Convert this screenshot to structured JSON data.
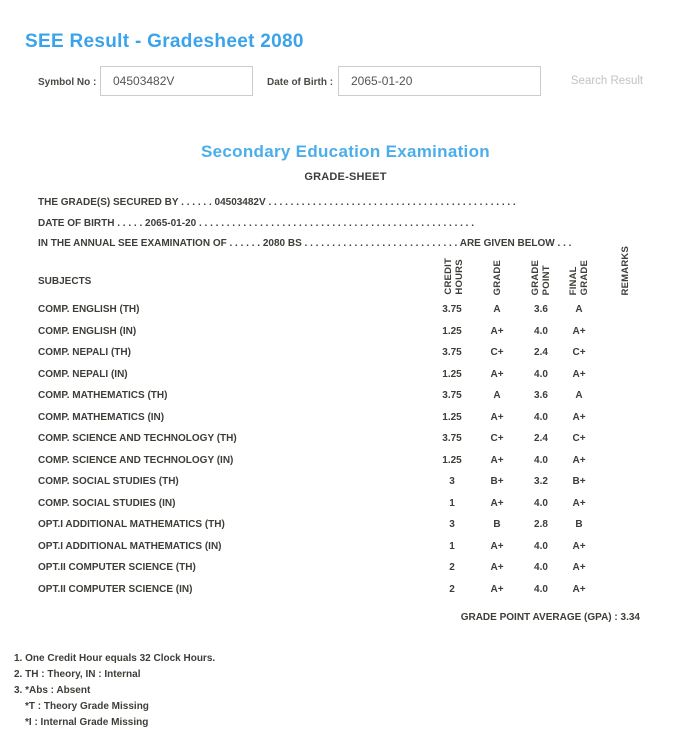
{
  "page": {
    "title": "SEE Result - Gradesheet 2080"
  },
  "search_form": {
    "symbol_label": "Symbol No :",
    "symbol_value": "04503482V",
    "dob_label": "Date of Birth :",
    "dob_value": "2065-01-20",
    "search_button_label": "Search Result"
  },
  "gradesheet": {
    "exam_title": "Secondary Education Examination",
    "sheet_title": "GRADE-SHEET",
    "intro_lines": [
      "THE GRADE(S) SECURED BY . . . . . . 04503482V . . . . . . . . . . . . . . . . . . . . . . . . . . . . . . . . . . . . . . . . . . . . .",
      "DATE OF BIRTH . . . . . 2065-01-20 . . . . . . . . . . . . . . . . . . . . . . . . . . . . . . . . . . . . . . . . . . . . . . . . . .",
      "IN THE ANNUAL SEE EXAMINATION OF . . . . . . 2080 BS . . . . . . . . . . . . . . . . . . . . . . . . . . . . ARE GIVEN BELOW . . ."
    ],
    "table": {
      "subjects_header": "SUBJECTS",
      "columns": {
        "credit_hours": "CREDIT\nHOURS",
        "grade": "GRADE",
        "grade_point": "GRADE\nPOINT",
        "final_grade": "FINAL\nGRADE",
        "remarks": "REMARKS"
      },
      "rows": [
        {
          "subject": "COMP. ENGLISH (TH)",
          "credit_hours": "3.75",
          "grade": "A",
          "grade_point": "3.6",
          "final_grade": "A",
          "remarks": ""
        },
        {
          "subject": "COMP. ENGLISH (IN)",
          "credit_hours": "1.25",
          "grade": "A+",
          "grade_point": "4.0",
          "final_grade": "A+",
          "remarks": ""
        },
        {
          "subject": "COMP. NEPALI (TH)",
          "credit_hours": "3.75",
          "grade": "C+",
          "grade_point": "2.4",
          "final_grade": "C+",
          "remarks": ""
        },
        {
          "subject": "COMP. NEPALI (IN)",
          "credit_hours": "1.25",
          "grade": "A+",
          "grade_point": "4.0",
          "final_grade": "A+",
          "remarks": ""
        },
        {
          "subject": "COMP. MATHEMATICS (TH)",
          "credit_hours": "3.75",
          "grade": "A",
          "grade_point": "3.6",
          "final_grade": "A",
          "remarks": ""
        },
        {
          "subject": "COMP. MATHEMATICS (IN)",
          "credit_hours": "1.25",
          "grade": "A+",
          "grade_point": "4.0",
          "final_grade": "A+",
          "remarks": ""
        },
        {
          "subject": "COMP. SCIENCE AND TECHNOLOGY (TH)",
          "credit_hours": "3.75",
          "grade": "C+",
          "grade_point": "2.4",
          "final_grade": "C+",
          "remarks": ""
        },
        {
          "subject": "COMP. SCIENCE AND TECHNOLOGY (IN)",
          "credit_hours": "1.25",
          "grade": "A+",
          "grade_point": "4.0",
          "final_grade": "A+",
          "remarks": ""
        },
        {
          "subject": "COMP. SOCIAL STUDIES (TH)",
          "credit_hours": "3",
          "grade": "B+",
          "grade_point": "3.2",
          "final_grade": "B+",
          "remarks": ""
        },
        {
          "subject": "COMP. SOCIAL STUDIES (IN)",
          "credit_hours": "1",
          "grade": "A+",
          "grade_point": "4.0",
          "final_grade": "A+",
          "remarks": ""
        },
        {
          "subject": "OPT.I ADDITIONAL MATHEMATICS (TH)",
          "credit_hours": "3",
          "grade": "B",
          "grade_point": "2.8",
          "final_grade": "B",
          "remarks": ""
        },
        {
          "subject": "OPT.I ADDITIONAL MATHEMATICS (IN)",
          "credit_hours": "1",
          "grade": "A+",
          "grade_point": "4.0",
          "final_grade": "A+",
          "remarks": ""
        },
        {
          "subject": "OPT.II COMPUTER SCIENCE (TH)",
          "credit_hours": "2",
          "grade": "A+",
          "grade_point": "4.0",
          "final_grade": "A+",
          "remarks": ""
        },
        {
          "subject": "OPT.II COMPUTER SCIENCE (IN)",
          "credit_hours": "2",
          "grade": "A+",
          "grade_point": "4.0",
          "final_grade": "A+",
          "remarks": ""
        }
      ]
    },
    "gpa_line": "GRADE POINT AVERAGE (GPA) : 3.34",
    "notes": [
      {
        "text": "1. One Credit Hour equals 32 Clock Hours."
      },
      {
        "text": "2. TH : Theory, IN : Internal"
      },
      {
        "text": "3. *Abs : Absent"
      },
      {
        "text": "*T : Theory Grade Missing"
      },
      {
        "text": "*I : Internal Grade Missing"
      }
    ]
  },
  "colors": {
    "heading_blue": "#3AA3E9",
    "exam_title_blue": "#4BAEEA",
    "document_text": "#3E3D38",
    "label_text": "#4A4A45",
    "input_border": "#CCCCCC",
    "input_text": "#555555",
    "muted_button_text": "#C2C2C2"
  }
}
